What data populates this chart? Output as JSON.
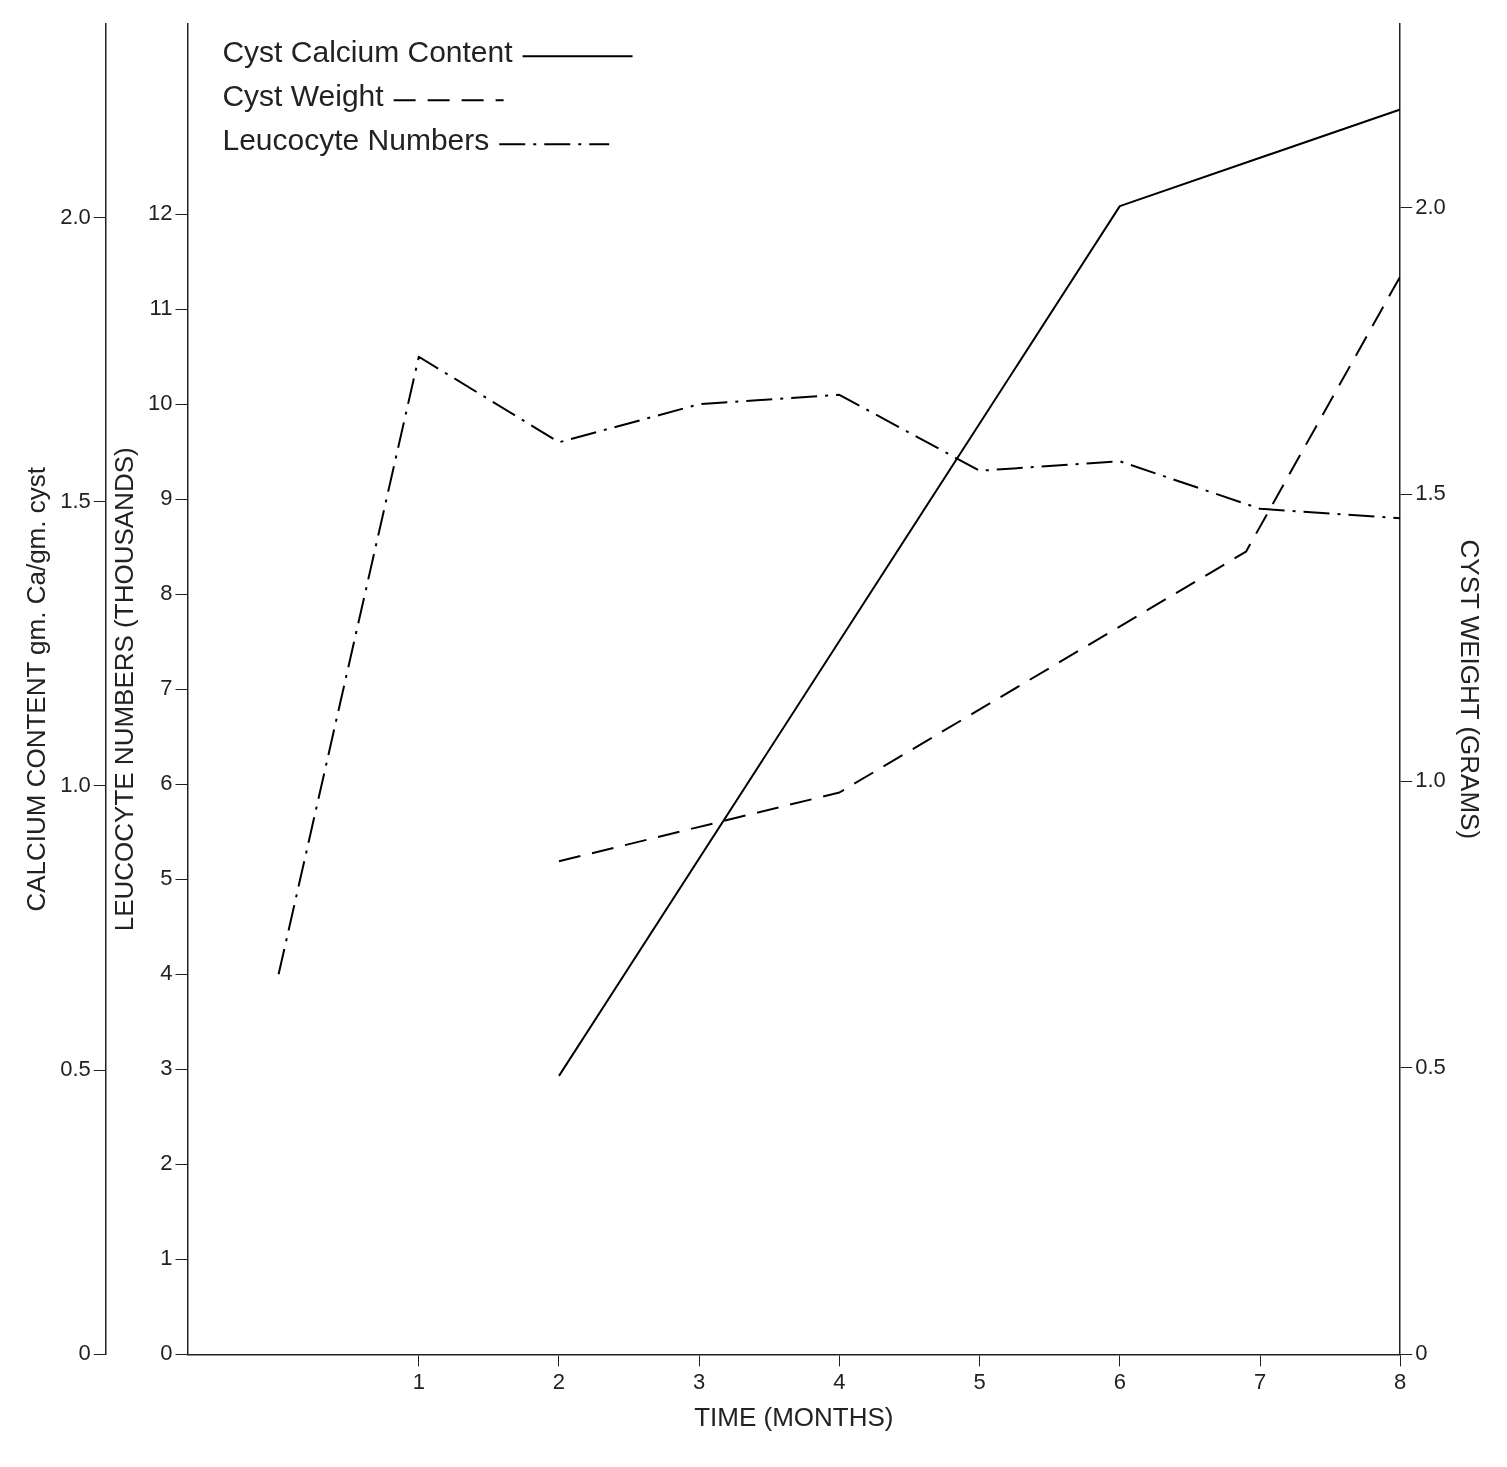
{
  "chart_data": {
    "type": "line",
    "xlabel": "TIME (MONTHS)",
    "ylabel": "CALCIUM CONTENT gm. Ca/gm. cyst",
    "y2label": "LEUCOCYTE NUMBERS (THOUSANDS)",
    "y3label": "CYST WEIGHT (GRAMS)",
    "xlim": [
      -0.65,
      8
    ],
    "xticks": [
      1,
      2,
      3,
      4,
      5,
      6,
      7,
      8
    ],
    "ylim": [
      0,
      2.34
    ],
    "yticks": [
      0,
      {
        "value": 0.5,
        "label": "0.5"
      },
      {
        "value": 1,
        "label": "1.0"
      },
      {
        "value": 1.5,
        "label": "1.5"
      },
      {
        "value": 2,
        "label": "2.0"
      }
    ],
    "y2lim": [
      0,
      14
    ],
    "y2ticks": [
      0,
      1,
      2,
      3,
      4,
      5,
      6,
      7,
      8,
      9,
      10,
      11,
      12
    ],
    "y3lim": [
      0,
      2.32
    ],
    "y3ticks": [
      0,
      {
        "value": 0.5,
        "label": "0.5"
      },
      {
        "value": 1,
        "label": "1.0"
      },
      {
        "value": 1.5,
        "label": "1.5"
      },
      {
        "value": 2,
        "label": "2.0"
      }
    ],
    "grid": false,
    "legend": "top left",
    "marker": "none",
    "series": [
      {
        "name": "Cyst Calcium Content",
        "color": "#000000",
        "line_style": "solid",
        "x": [
          2,
          6,
          8
        ],
        "values": [
          0.49,
          2.02,
          2.19
        ]
      },
      {
        "name": "Cyst Weight",
        "color": "#000000",
        "line_style": "dashed",
        "axis": "y3",
        "x": [
          2,
          4,
          6.9,
          8
        ],
        "values": [
          0.86,
          0.98,
          1.4,
          1.88
        ]
      },
      {
        "name": "Leucocyte Numbers",
        "color": "#000000",
        "line_style": "dashdot",
        "axis": "y2",
        "x": [
          0,
          1,
          2,
          3,
          4,
          5,
          6,
          7,
          8
        ],
        "values": [
          4.0,
          10.5,
          9.6,
          10.0,
          10.1,
          9.3,
          9.4,
          8.9,
          8.8
        ]
      }
    ]
  }
}
